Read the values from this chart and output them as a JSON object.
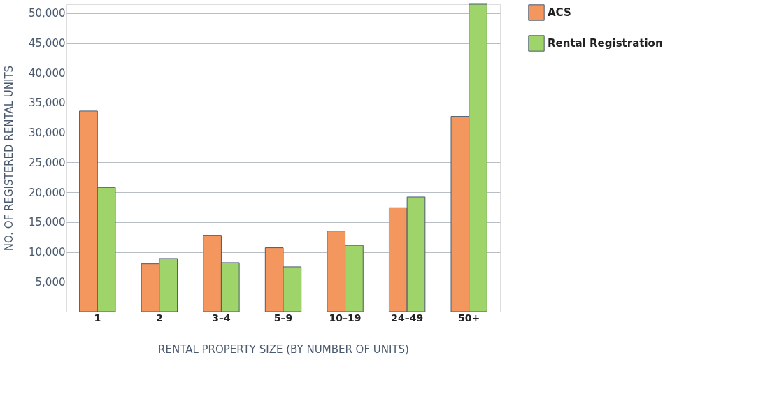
{
  "chart_data": {
    "type": "bar",
    "xlabel": "RENTAL PROPERTY SIZE (BY NUMBER OF UNITS)",
    "ylabel": "NO. OF REGISTERED RENTAL UNITS",
    "categories": [
      "1",
      "2",
      "3–4",
      "5–9",
      "10–19",
      "24–49",
      "50+"
    ],
    "series": [
      {
        "name": "ACS",
        "color": "#f4975f",
        "values": [
          33600,
          8000,
          12800,
          10700,
          13500,
          17400,
          32700
        ]
      },
      {
        "name": "Rental Registration",
        "color": "#9fd46b",
        "values": [
          20800,
          8900,
          8200,
          7500,
          11100,
          19200,
          51500
        ]
      }
    ],
    "ylim": [
      0,
      51500
    ],
    "yticks": [
      {
        "value": 5000,
        "label": "5,000"
      },
      {
        "value": 10000,
        "label": "10,000"
      },
      {
        "value": 15000,
        "label": "15,000"
      },
      {
        "value": 20000,
        "label": "20,000"
      },
      {
        "value": 25000,
        "label": "25,000"
      },
      {
        "value": 30000,
        "label": "30,000"
      },
      {
        "value": 35000,
        "label": "35,000"
      },
      {
        "value": 40000,
        "label": "40,000"
      },
      {
        "value": 45000,
        "label": "45,000"
      },
      {
        "value": 50000,
        "label": "50,000"
      }
    ],
    "grid": "y",
    "legend": "top right"
  }
}
